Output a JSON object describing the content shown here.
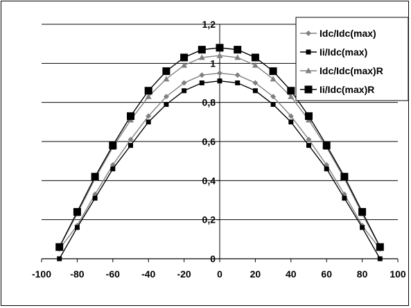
{
  "chart_data": {
    "type": "line",
    "title": "",
    "xlabel": "",
    "ylabel": "",
    "xlim": [
      -100,
      100
    ],
    "ylim": [
      0,
      1.2
    ],
    "x_ticks": [
      "-100",
      "-80",
      "-60",
      "-40",
      "-20",
      "0",
      "20",
      "40",
      "60",
      "80",
      "100"
    ],
    "y_ticks": [
      "0",
      "0,2",
      "0,4",
      "0,6",
      "0,8",
      "1",
      "1,2"
    ],
    "grid": "horizontal",
    "legend_position": "top-right",
    "x": [
      -90,
      -80,
      -70,
      -60,
      -50,
      -40,
      -30,
      -20,
      -10,
      0,
      10,
      20,
      30,
      40,
      50,
      60,
      70,
      80,
      90
    ],
    "series": [
      {
        "name": "Idc/Idc(max)",
        "color": "#808080",
        "marker": "diamond",
        "values": [
          0.05,
          0.17,
          0.33,
          0.48,
          0.61,
          0.73,
          0.83,
          0.9,
          0.94,
          0.95,
          0.94,
          0.9,
          0.83,
          0.73,
          0.61,
          0.48,
          0.33,
          0.17,
          0.05
        ]
      },
      {
        "name": "Ii/Idc(max)",
        "color": "#000000",
        "marker": "square-small",
        "values": [
          0.0,
          0.16,
          0.31,
          0.46,
          0.58,
          0.7,
          0.79,
          0.86,
          0.9,
          0.91,
          0.9,
          0.86,
          0.79,
          0.7,
          0.58,
          0.46,
          0.31,
          0.16,
          0.0
        ]
      },
      {
        "name": "Idc/Idc(max)R",
        "color": "#808080",
        "marker": "triangle",
        "values": [
          0.06,
          0.23,
          0.41,
          0.57,
          0.71,
          0.83,
          0.92,
          0.99,
          1.03,
          1.04,
          1.03,
          0.99,
          0.92,
          0.83,
          0.71,
          0.57,
          0.41,
          0.23,
          0.06
        ]
      },
      {
        "name": "Ii/Idc(max)R",
        "color": "#000000",
        "marker": "square-large",
        "values": [
          0.06,
          0.24,
          0.42,
          0.58,
          0.73,
          0.86,
          0.96,
          1.03,
          1.07,
          1.08,
          1.07,
          1.03,
          0.96,
          0.86,
          0.73,
          0.58,
          0.42,
          0.24,
          0.06
        ]
      }
    ]
  }
}
